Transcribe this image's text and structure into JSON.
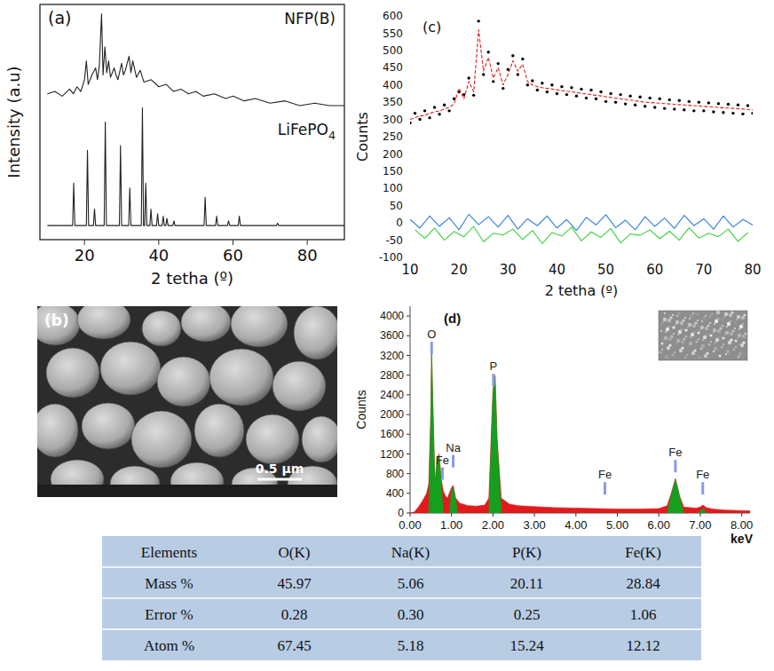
{
  "chart_data": [
    {
      "type": "line",
      "title": "(a)",
      "x_label": "2 tetha (º)",
      "y_label": "Intensity (a.u)",
      "xlim": [
        8,
        90
      ],
      "xticks": [
        20,
        40,
        60,
        80
      ],
      "ylim": [
        0,
        100
      ],
      "tick_labels": "x",
      "series": [
        {
          "name": "NFP(B)",
          "color": "#222222",
          "x": [
            10,
            12,
            14,
            16,
            17,
            18,
            19,
            20,
            20.5,
            21,
            22,
            23,
            23.5,
            24,
            24.6,
            25,
            25.5,
            26,
            26.5,
            27,
            28,
            28.5,
            29,
            30,
            30.5,
            31,
            32,
            32.5,
            33,
            34,
            35,
            36,
            38,
            40,
            42,
            44,
            46,
            48,
            50,
            52,
            55,
            58,
            60,
            63,
            66,
            70,
            74,
            78,
            82,
            86,
            90
          ],
          "values": [
            62,
            63,
            61,
            64,
            62,
            65,
            63,
            68,
            76,
            66,
            70,
            73,
            68,
            74,
            96,
            70,
            82,
            71,
            76,
            69,
            73,
            70,
            68,
            75,
            70,
            72,
            78,
            71,
            76,
            69,
            72,
            67,
            68,
            65,
            66,
            63,
            64,
            62,
            63,
            61,
            62,
            60,
            61,
            59,
            60,
            58,
            59,
            57,
            58,
            57,
            57
          ]
        },
        {
          "name": "LiFePO4",
          "color": "#222222",
          "x": [
            10,
            16.8,
            17.1,
            17.4,
            20.5,
            20.8,
            21.1,
            22.4,
            22.7,
            23.0,
            25.3,
            25.6,
            25.9,
            29.4,
            29.7,
            30.0,
            31.9,
            32.2,
            32.5,
            35.3,
            35.6,
            35.9,
            36.2,
            36.5,
            36.8,
            37.6,
            37.9,
            38.2,
            39.4,
            39.7,
            40.0,
            40.9,
            41.2,
            41.5,
            41.9,
            42.2,
            42.5,
            43.8,
            44.1,
            44.4,
            52.2,
            52.5,
            52.8,
            55.3,
            55.6,
            55.9,
            58.5,
            58.8,
            59.1,
            61.4,
            61.7,
            62.0,
            71.7,
            72.0,
            72.3,
            90
          ],
          "values": [
            6,
            6,
            24,
            6,
            6,
            38,
            6,
            6,
            13,
            6,
            6,
            50,
            6,
            6,
            40,
            6,
            6,
            22,
            6,
            6,
            56,
            6,
            6,
            24,
            6,
            6,
            13,
            6,
            6,
            11,
            6,
            6,
            10,
            6,
            6,
            9,
            6,
            6,
            8,
            6,
            6,
            18,
            6,
            6,
            10,
            6,
            6,
            8,
            6,
            6,
            10,
            6,
            6,
            7,
            6,
            6
          ]
        }
      ]
    },
    {
      "type": "line",
      "title": "(c)",
      "x_label": "2 tetha (º)",
      "y_label": "Counts",
      "xlim": [
        10,
        80
      ],
      "xticks": [
        10,
        20,
        30,
        40,
        50,
        60,
        70,
        80
      ],
      "ylim": [
        -100,
        600
      ],
      "yticks": [
        -100,
        -50,
        0,
        50,
        100,
        150,
        200,
        250,
        300,
        350,
        400,
        450,
        500,
        550,
        600
      ],
      "series": [
        {
          "type": "line",
          "color": "#3ad13a",
          "x": [
            11,
            13,
            15,
            17,
            19,
            21,
            23,
            25,
            27,
            29,
            31,
            33,
            35,
            37,
            39,
            41,
            43,
            45,
            47,
            49,
            51,
            53,
            55,
            57,
            59,
            61,
            63,
            65,
            67,
            69,
            71,
            73,
            75,
            77,
            79
          ],
          "values": [
            -20,
            -45,
            -15,
            -50,
            -25,
            -40,
            -10,
            -55,
            -30,
            -35,
            -18,
            -48,
            -22,
            -60,
            -28,
            -38,
            -12,
            -52,
            -26,
            -42,
            -16,
            -58,
            -32,
            -36,
            -20,
            -46,
            -24,
            -50,
            -14,
            -44,
            -30,
            -40,
            -18,
            -54,
            -28
          ]
        },
        {
          "type": "line",
          "color": "#2f7fe0",
          "x": [
            10,
            12,
            14,
            16,
            18,
            20,
            22,
            24,
            26,
            28,
            30,
            32,
            34,
            36,
            38,
            40,
            42,
            44,
            46,
            48,
            50,
            52,
            54,
            56,
            58,
            60,
            62,
            64,
            66,
            68,
            70,
            72,
            74,
            76,
            78,
            80
          ],
          "values": [
            10,
            -15,
            20,
            -10,
            15,
            -20,
            25,
            -5,
            18,
            -12,
            22,
            -18,
            12,
            -8,
            20,
            -15,
            10,
            -22,
            16,
            -6,
            24,
            -14,
            8,
            -20,
            18,
            -10,
            14,
            -16,
            22,
            -8,
            12,
            -18,
            20,
            -12,
            10,
            -6
          ]
        },
        {
          "type": "scatter",
          "marker": "circle",
          "color": "#000000",
          "x": [
            10,
            11,
            12,
            13,
            14,
            15,
            16,
            17,
            18,
            19,
            20,
            21,
            22,
            23,
            24,
            25,
            26,
            27,
            28,
            29,
            30,
            31,
            32,
            33,
            34,
            35,
            36,
            37,
            38,
            39,
            40,
            41,
            42,
            43,
            44,
            45,
            46,
            47,
            48,
            49,
            50,
            51,
            52,
            53,
            54,
            55,
            56,
            57,
            58,
            59,
            60,
            61,
            62,
            63,
            64,
            65,
            66,
            67,
            68,
            69,
            70,
            71,
            72,
            73,
            74,
            75,
            76,
            77,
            78,
            79,
            80
          ],
          "values": [
            290,
            318,
            300,
            325,
            305,
            335,
            315,
            342,
            325,
            360,
            380,
            372,
            420,
            370,
            585,
            430,
            495,
            410,
            462,
            390,
            445,
            485,
            430,
            475,
            400,
            412,
            385,
            405,
            380,
            400,
            375,
            395,
            372,
            392,
            368,
            388,
            362,
            385,
            360,
            380,
            352,
            375,
            350,
            372,
            345,
            368,
            342,
            365,
            338,
            362,
            335,
            360,
            332,
            357,
            330,
            355,
            328,
            352,
            325,
            350,
            325,
            348,
            322,
            346,
            320,
            344,
            318,
            342,
            316,
            340,
            318
          ]
        },
        {
          "type": "line",
          "line_style": "dashed",
          "color": "#e0201b",
          "x": [
            10,
            11,
            12,
            13,
            14,
            15,
            16,
            17,
            18,
            19,
            20,
            21,
            22,
            23,
            24,
            25,
            26,
            27,
            28,
            29,
            30,
            31,
            32,
            33,
            34,
            35,
            36,
            37,
            38,
            39,
            40,
            41,
            42,
            43,
            44,
            45,
            46,
            47,
            48,
            49,
            50,
            51,
            52,
            53,
            54,
            55,
            56,
            57,
            58,
            59,
            60,
            61,
            62,
            63,
            64,
            65,
            66,
            67,
            68,
            69,
            70,
            71,
            72,
            73,
            74,
            75,
            76,
            77,
            78,
            79,
            80
          ],
          "values": [
            300,
            305,
            310,
            312,
            318,
            322,
            325,
            330,
            335,
            345,
            390,
            360,
            410,
            380,
            560,
            440,
            480,
            420,
            450,
            400,
            430,
            470,
            440,
            460,
            410,
            400,
            395,
            392,
            390,
            388,
            386,
            384,
            382,
            380,
            378,
            376,
            374,
            372,
            370,
            368,
            366,
            364,
            362,
            360,
            358,
            356,
            354,
            352,
            350,
            349,
            348,
            347,
            346,
            345,
            344,
            343,
            342,
            341,
            340,
            339,
            338,
            337,
            336,
            335,
            334,
            333,
            332,
            331,
            330,
            329,
            328
          ]
        }
      ]
    },
    {
      "type": "area",
      "title": "(d)",
      "x_label": "keV",
      "y_label": "Counts",
      "xlim": [
        0,
        8.2
      ],
      "xticks": [
        {
          "value": 0,
          "label": "0.00"
        },
        {
          "value": 1,
          "label": "1.00"
        },
        {
          "value": 2,
          "label": "2.00"
        },
        {
          "value": 3,
          "label": "3.00"
        },
        {
          "value": 4,
          "label": "4.00"
        },
        {
          "value": 5,
          "label": "5.00"
        },
        {
          "value": 6,
          "label": "6.00"
        },
        {
          "value": 7,
          "label": "7.00"
        },
        {
          "value": 8,
          "label": "8.00"
        }
      ],
      "ylim": [
        0,
        4200
      ],
      "yticks": [
        0,
        400,
        800,
        1200,
        1600,
        2000,
        2400,
        2800,
        3200,
        3600,
        4000
      ],
      "series": [
        {
          "color": "#e31a1c",
          "x": [
            0,
            0.1,
            0.2,
            0.3,
            0.4,
            0.45,
            0.5,
            0.52,
            0.55,
            0.6,
            0.65,
            0.7,
            0.75,
            0.8,
            0.85,
            0.9,
            1.0,
            1.04,
            1.1,
            1.2,
            1.4,
            1.6,
            1.8,
            1.9,
            2.0,
            2.05,
            2.1,
            2.2,
            2.4,
            2.6,
            3.0,
            3.5,
            4.0,
            4.5,
            5.0,
            5.5,
            6.0,
            6.2,
            6.3,
            6.4,
            6.5,
            6.6,
            6.9,
            7.0,
            7.06,
            7.15,
            7.3,
            7.6,
            8.0,
            8.2
          ],
          "values": [
            0,
            20,
            120,
            250,
            400,
            600,
            2000,
            3300,
            2200,
            600,
            1100,
            1200,
            700,
            450,
            350,
            300,
            520,
            560,
            300,
            200,
            150,
            140,
            160,
            300,
            2500,
            2800,
            1500,
            300,
            180,
            150,
            130,
            110,
            100,
            90,
            80,
            80,
            90,
            150,
            400,
            700,
            350,
            120,
            100,
            120,
            160,
            110,
            80,
            60,
            50,
            45
          ]
        },
        {
          "color": "#14a01e",
          "x": [
            0.45,
            0.5,
            0.52,
            0.55,
            0.6,
            0.65,
            0.7,
            0.75,
            0.8,
            0.9,
            0.95,
            1.0,
            1.04,
            1.1,
            1.15,
            1.5,
            1.9,
            2.0,
            2.05,
            2.1,
            2.2,
            4.0,
            6.2,
            6.3,
            6.4,
            6.5,
            6.6,
            6.8,
            6.95,
            7.06,
            7.15
          ],
          "values": [
            0,
            1950,
            3250,
            2150,
            560,
            1050,
            1150,
            650,
            0,
            null,
            0,
            480,
            520,
            260,
            0,
            null,
            0,
            2450,
            2750,
            1450,
            0,
            null,
            0,
            380,
            680,
            330,
            0,
            null,
            0,
            90,
            0
          ]
        }
      ],
      "annotations": [
        {
          "text": "O",
          "x": 0.52,
          "y": 3550
        },
        {
          "text": "Fe",
          "x": 0.78,
          "y": 1000
        },
        {
          "text": "Na",
          "x": 1.04,
          "y": 1250
        },
        {
          "text": "P",
          "x": 2.01,
          "y": 2900
        },
        {
          "text": "Fe",
          "x": 4.7,
          "y": 700
        },
        {
          "text": "Fe",
          "x": 6.4,
          "y": 1150
        },
        {
          "text": "Fe",
          "x": 7.06,
          "y": 700
        }
      ]
    }
  ],
  "sem_image": {
    "title": "(b)",
    "scale_bar": "0.5 µm"
  },
  "table": {
    "header": [
      "Elements",
      "O(K)",
      "Na(K)",
      "P(K)",
      "Fe(K)"
    ],
    "rows": [
      [
        "Mass %",
        "45.97",
        "5.06",
        "20.11",
        "28.84"
      ],
      [
        "Error %",
        "0.28",
        "0.30",
        "0.25",
        "1.06"
      ],
      [
        "Atom %",
        "67.45",
        "5.18",
        "15.24",
        "12.12"
      ]
    ]
  }
}
